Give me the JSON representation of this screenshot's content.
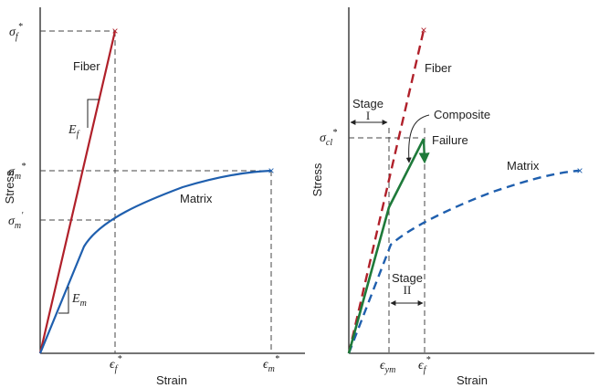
{
  "left_panel": {
    "y_axis_label": "Stress",
    "x_axis_label": "Strain",
    "fiber_label": "Fiber",
    "matrix_label": "Matrix",
    "modulus_fiber": {
      "base": "E",
      "sub": "f"
    },
    "modulus_matrix": {
      "base": "E",
      "sub": "m"
    },
    "stress_ticks": [
      {
        "base": "σ",
        "sub": "f",
        "sup": "*"
      },
      {
        "base": "σ",
        "sub": "m",
        "sup": "*"
      },
      {
        "base": "σ",
        "sub": "m",
        "sup": "'"
      }
    ],
    "strain_ticks": [
      {
        "base": "ϵ",
        "sub": "f",
        "sup": "*"
      },
      {
        "base": "ϵ",
        "sub": "m",
        "sup": "*"
      }
    ]
  },
  "right_panel": {
    "y_axis_label": "Stress",
    "x_axis_label": "Strain",
    "fiber_label": "Fiber",
    "matrix_label": "Matrix",
    "composite_label": "Composite",
    "failure_label": "Failure",
    "stage1_label": "Stage",
    "stage1_num": "I",
    "stage2_label": "Stage",
    "stage2_num": "II",
    "stress_tick": {
      "base": "σ",
      "sub": "cl",
      "sup": "*"
    },
    "strain_ticks": [
      {
        "base": "ϵ",
        "sub": "ym",
        "sup": ""
      },
      {
        "base": "ϵ",
        "sub": "f",
        "sup": "*"
      }
    ]
  },
  "colors": {
    "fiber": "#b0202a",
    "matrix": "#1f5fae",
    "composite": "#1e7a3a"
  }
}
